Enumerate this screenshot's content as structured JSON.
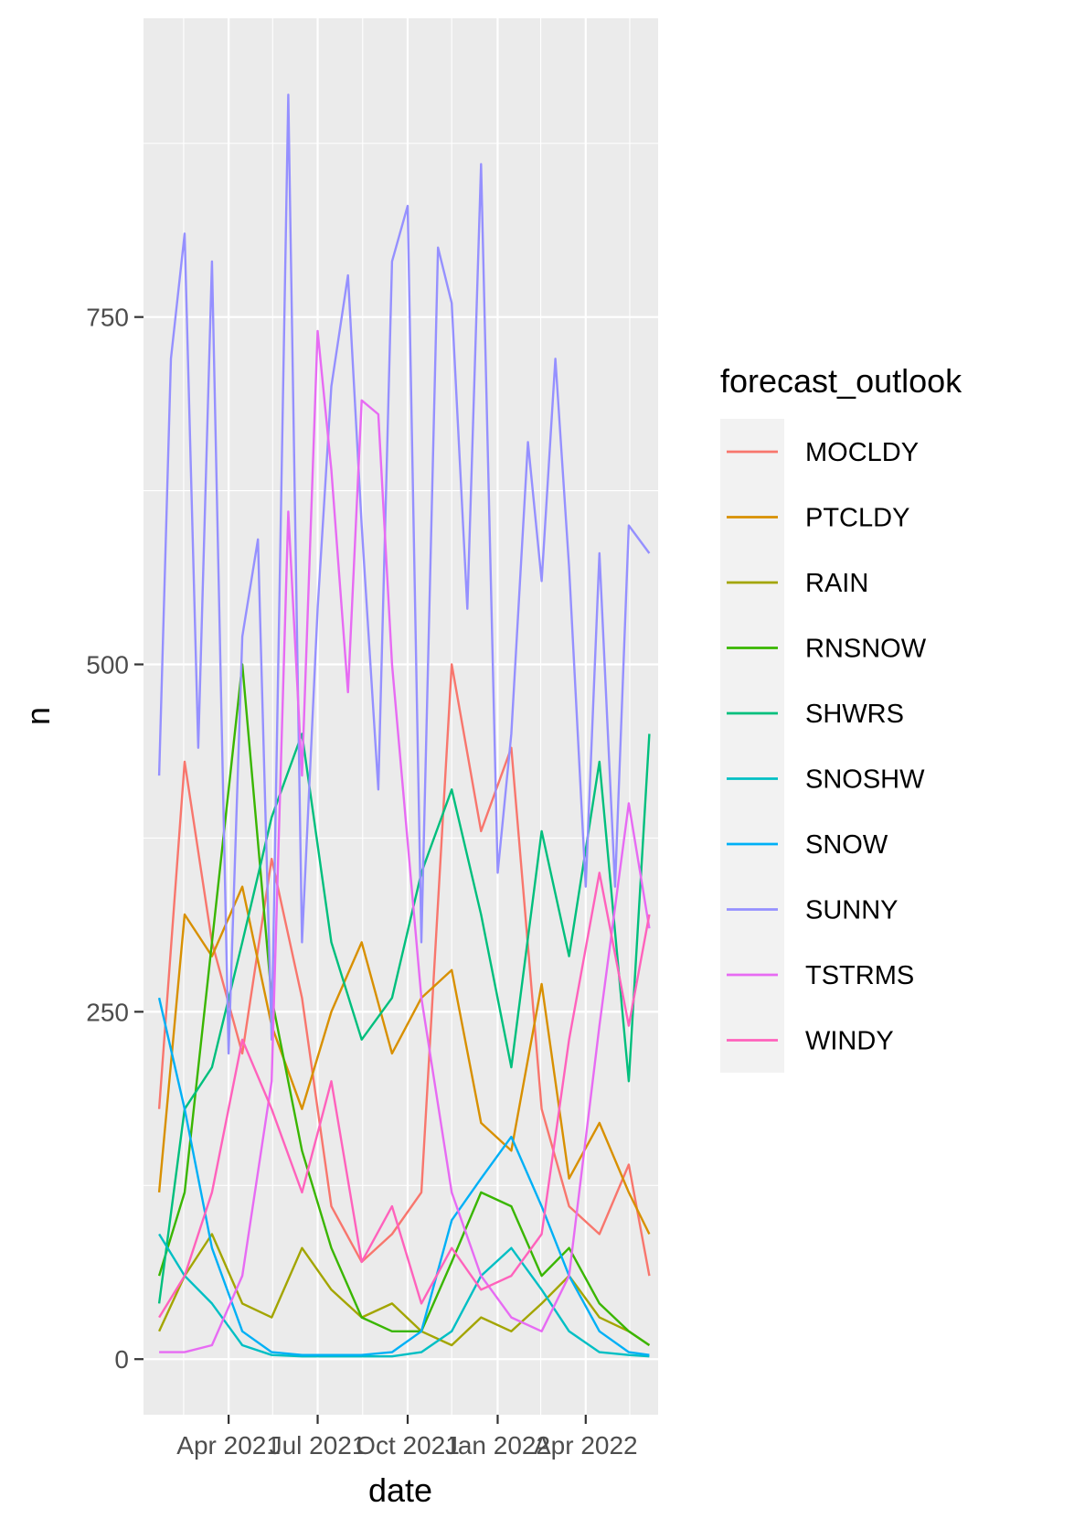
{
  "chart_data": {
    "type": "line",
    "xlabel": "date",
    "ylabel": "n",
    "x_tick_labels": [
      "Apr 2021",
      "Jul 2021",
      "Oct 2021",
      "Jan 2022",
      "Apr 2022"
    ],
    "x_ticks": [
      "2021-04-01",
      "2021-07-01",
      "2021-10-01",
      "2022-01-01",
      "2022-04-01"
    ],
    "xlim": [
      "2021-01-04",
      "2022-06-14"
    ],
    "y_tick_labels": [
      "0",
      "250",
      "500",
      "750"
    ],
    "y_ticks": [
      0,
      250,
      500,
      750
    ],
    "ylim": [
      -40,
      965
    ],
    "grid": true,
    "legend": {
      "title": "forecast_outlook",
      "position": "right"
    },
    "series": [
      {
        "name": "MOCLDY",
        "color": "#F8766D",
        "x": [
          "2021-01-20",
          "2021-02-15",
          "2021-03-15",
          "2021-04-15",
          "2021-05-15",
          "2021-06-15",
          "2021-07-15",
          "2021-08-15",
          "2021-09-15",
          "2021-10-15",
          "2021-11-15",
          "2021-12-15",
          "2022-01-15",
          "2022-02-15",
          "2022-03-15",
          "2022-04-15",
          "2022-05-15",
          "2022-06-05"
        ],
        "values": [
          180,
          430,
          300,
          220,
          360,
          260,
          110,
          70,
          90,
          120,
          500,
          380,
          440,
          180,
          110,
          90,
          140,
          60
        ]
      },
      {
        "name": "PTCLDY",
        "color": "#D89000",
        "x": [
          "2021-01-20",
          "2021-02-15",
          "2021-03-15",
          "2021-04-15",
          "2021-05-15",
          "2021-06-15",
          "2021-07-15",
          "2021-08-15",
          "2021-09-15",
          "2021-10-15",
          "2021-11-15",
          "2021-12-15",
          "2022-01-15",
          "2022-02-15",
          "2022-03-15",
          "2022-04-15",
          "2022-05-15",
          "2022-06-05"
        ],
        "values": [
          120,
          320,
          290,
          340,
          240,
          180,
          250,
          300,
          220,
          260,
          280,
          170,
          150,
          270,
          130,
          170,
          120,
          90
        ]
      },
      {
        "name": "RAIN",
        "color": "#A3A500",
        "x": [
          "2021-01-20",
          "2021-02-15",
          "2021-03-15",
          "2021-04-15",
          "2021-05-15",
          "2021-06-15",
          "2021-07-15",
          "2021-08-15",
          "2021-09-15",
          "2021-10-15",
          "2021-11-15",
          "2021-12-15",
          "2022-01-15",
          "2022-02-15",
          "2022-03-15",
          "2022-04-15",
          "2022-05-15",
          "2022-06-05"
        ],
        "values": [
          20,
          60,
          90,
          40,
          30,
          80,
          50,
          30,
          40,
          20,
          10,
          30,
          20,
          40,
          60,
          30,
          20,
          10
        ]
      },
      {
        "name": "RNSNOW",
        "color": "#39B600",
        "x": [
          "2021-01-20",
          "2021-02-15",
          "2021-03-15",
          "2021-04-15",
          "2021-05-15",
          "2021-06-15",
          "2021-07-15",
          "2021-08-15",
          "2021-09-15",
          "2021-10-15",
          "2021-11-15",
          "2021-12-15",
          "2022-01-15",
          "2022-02-15",
          "2022-03-15",
          "2022-04-15",
          "2022-05-15",
          "2022-06-05"
        ],
        "values": [
          60,
          120,
          300,
          500,
          260,
          150,
          80,
          30,
          20,
          20,
          70,
          120,
          110,
          60,
          80,
          40,
          20,
          10
        ]
      },
      {
        "name": "SHWRS",
        "color": "#00BF7D",
        "x": [
          "2021-01-20",
          "2021-02-15",
          "2021-03-15",
          "2021-04-15",
          "2021-05-15",
          "2021-06-15",
          "2021-07-15",
          "2021-08-15",
          "2021-09-15",
          "2021-10-15",
          "2021-11-15",
          "2021-12-15",
          "2022-01-15",
          "2022-02-15",
          "2022-03-15",
          "2022-04-15",
          "2022-05-15",
          "2022-06-05"
        ],
        "values": [
          40,
          180,
          210,
          300,
          390,
          450,
          300,
          230,
          260,
          350,
          410,
          320,
          210,
          380,
          290,
          430,
          200,
          450
        ]
      },
      {
        "name": "SNOSHW",
        "color": "#00BFC4",
        "x": [
          "2021-01-20",
          "2021-02-15",
          "2021-03-15",
          "2021-04-15",
          "2021-05-15",
          "2021-06-15",
          "2021-07-15",
          "2021-08-15",
          "2021-09-15",
          "2021-10-15",
          "2021-11-15",
          "2021-12-15",
          "2022-01-15",
          "2022-02-15",
          "2022-03-15",
          "2022-04-15",
          "2022-05-15",
          "2022-06-05"
        ],
        "values": [
          90,
          60,
          40,
          10,
          3,
          2,
          2,
          2,
          2,
          5,
          20,
          60,
          80,
          50,
          20,
          5,
          3,
          2
        ]
      },
      {
        "name": "SNOW",
        "color": "#00B0F6",
        "x": [
          "2021-01-20",
          "2021-02-15",
          "2021-03-15",
          "2021-04-15",
          "2021-05-15",
          "2021-06-15",
          "2021-07-15",
          "2021-08-15",
          "2021-09-15",
          "2021-10-15",
          "2021-11-15",
          "2021-12-15",
          "2022-01-15",
          "2022-02-15",
          "2022-03-15",
          "2022-04-15",
          "2022-05-15",
          "2022-06-05"
        ],
        "values": [
          260,
          180,
          80,
          20,
          5,
          3,
          3,
          3,
          5,
          20,
          100,
          130,
          160,
          110,
          60,
          20,
          5,
          3
        ]
      },
      {
        "name": "SUNNY",
        "color": "#9590FF",
        "x": [
          "2021-01-20",
          "2021-02-01",
          "2021-02-15",
          "2021-03-01",
          "2021-03-15",
          "2021-04-01",
          "2021-04-15",
          "2021-05-01",
          "2021-05-15",
          "2021-06-01",
          "2021-06-15",
          "2021-07-01",
          "2021-07-15",
          "2021-08-01",
          "2021-08-15",
          "2021-09-01",
          "2021-09-15",
          "2021-10-01",
          "2021-10-15",
          "2021-11-01",
          "2021-11-15",
          "2021-12-01",
          "2021-12-15",
          "2022-01-01",
          "2022-01-15",
          "2022-02-01",
          "2022-02-15",
          "2022-03-01",
          "2022-03-15",
          "2022-04-01",
          "2022-04-15",
          "2022-05-01",
          "2022-05-15",
          "2022-06-05"
        ],
        "values": [
          420,
          720,
          810,
          440,
          790,
          220,
          520,
          590,
          230,
          910,
          300,
          540,
          700,
          780,
          600,
          410,
          790,
          830,
          300,
          800,
          760,
          540,
          860,
          350,
          450,
          660,
          560,
          720,
          570,
          340,
          580,
          340,
          600,
          580
        ]
      },
      {
        "name": "TSTRMS",
        "color": "#E76BF3",
        "x": [
          "2021-01-20",
          "2021-02-15",
          "2021-03-15",
          "2021-04-15",
          "2021-05-15",
          "2021-06-01",
          "2021-06-15",
          "2021-07-01",
          "2021-07-15",
          "2021-08-01",
          "2021-08-15",
          "2021-09-01",
          "2021-09-15",
          "2021-10-15",
          "2021-11-15",
          "2021-12-15",
          "2022-01-15",
          "2022-02-15",
          "2022-03-15",
          "2022-04-15",
          "2022-05-15",
          "2022-06-05"
        ],
        "values": [
          5,
          5,
          10,
          60,
          200,
          610,
          420,
          740,
          640,
          480,
          690,
          680,
          500,
          260,
          120,
          60,
          30,
          20,
          60,
          240,
          400,
          310
        ]
      },
      {
        "name": "WINDY",
        "color": "#FF62BC",
        "x": [
          "2021-01-20",
          "2021-02-15",
          "2021-03-15",
          "2021-04-15",
          "2021-05-15",
          "2021-06-15",
          "2021-07-15",
          "2021-08-15",
          "2021-09-15",
          "2021-10-15",
          "2021-11-15",
          "2021-12-15",
          "2022-01-15",
          "2022-02-15",
          "2022-03-15",
          "2022-04-15",
          "2022-05-15",
          "2022-06-05"
        ],
        "values": [
          30,
          60,
          120,
          230,
          180,
          120,
          200,
          70,
          110,
          40,
          80,
          50,
          60,
          90,
          230,
          350,
          240,
          320
        ]
      }
    ]
  }
}
